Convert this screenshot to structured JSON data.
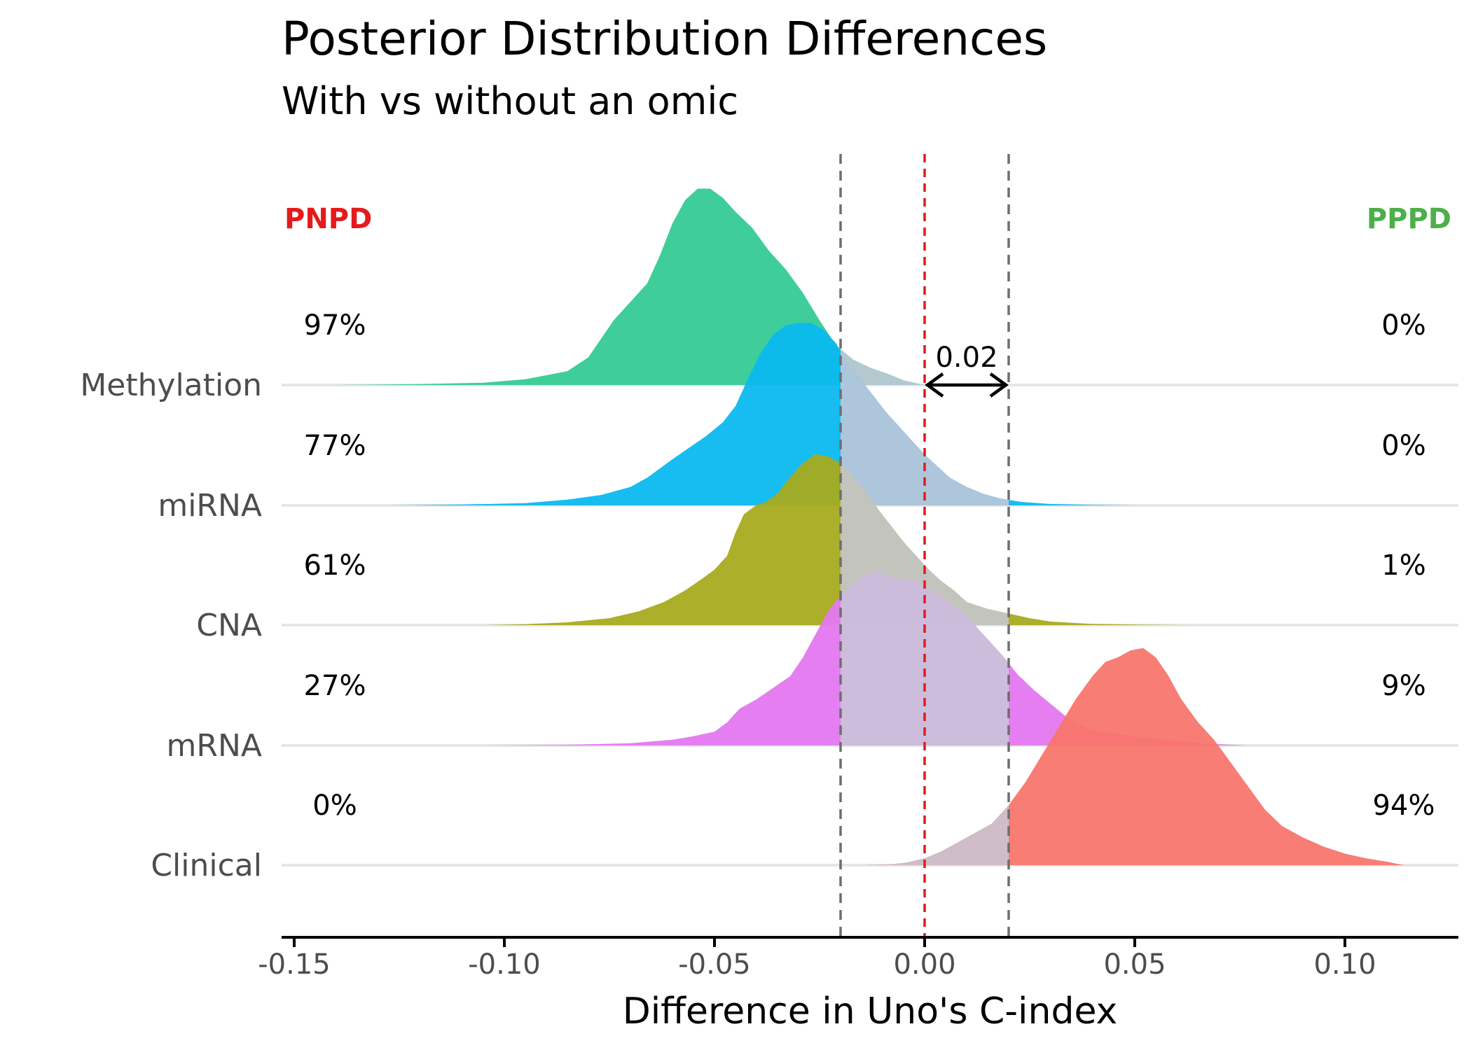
{
  "chart_data": {
    "type": "ridgeline",
    "title": "Posterior Distribution Differences",
    "subtitle": "With vs without an omic",
    "xlabel": "Difference in Uno's C-index",
    "xlim": [
      -0.153,
      0.127
    ],
    "xticks": [
      -0.15,
      -0.1,
      -0.05,
      0.0,
      0.05,
      0.1
    ],
    "xtick_labels": [
      "-0.15",
      "-0.10",
      "-0.05",
      "0.00",
      "0.05",
      "0.10"
    ],
    "rope": [
      -0.02,
      0.02
    ],
    "zero_line": 0.0,
    "threshold_label": "0.02",
    "left_heading": "PNPD",
    "right_heading": "PPPD",
    "left_color": "#e41a1c",
    "right_color": "#4daf4a",
    "rope_color": "#c8c8d8",
    "series": [
      {
        "name": "Methylation",
        "color": "#35cb94",
        "pnpd": "97%",
        "pppd": "0%",
        "density": [
          [
            -0.14,
            0
          ],
          [
            -0.12,
            0.004
          ],
          [
            -0.105,
            0.01
          ],
          [
            -0.095,
            0.025
          ],
          [
            -0.085,
            0.06
          ],
          [
            -0.08,
            0.12
          ],
          [
            -0.077,
            0.2
          ],
          [
            -0.074,
            0.28
          ],
          [
            -0.07,
            0.36
          ],
          [
            -0.066,
            0.44
          ],
          [
            -0.063,
            0.56
          ],
          [
            -0.06,
            0.7
          ],
          [
            -0.057,
            0.8
          ],
          [
            -0.054,
            0.85
          ],
          [
            -0.051,
            0.85
          ],
          [
            -0.048,
            0.81
          ],
          [
            -0.045,
            0.75
          ],
          [
            -0.041,
            0.68
          ],
          [
            -0.037,
            0.58
          ],
          [
            -0.033,
            0.5
          ],
          [
            -0.029,
            0.4
          ],
          [
            -0.025,
            0.28
          ],
          [
            -0.021,
            0.17
          ],
          [
            -0.017,
            0.11
          ],
          [
            -0.013,
            0.075
          ],
          [
            -0.009,
            0.05
          ],
          [
            -0.005,
            0.02
          ],
          [
            -0.002,
            0.008
          ],
          [
            0.0,
            0
          ]
        ]
      },
      {
        "name": "miRNA",
        "color": "#0bb9ef",
        "pnpd": "77%",
        "pppd": "0%",
        "density": [
          [
            -0.127,
            0
          ],
          [
            -0.11,
            0.004
          ],
          [
            -0.095,
            0.01
          ],
          [
            -0.085,
            0.025
          ],
          [
            -0.077,
            0.045
          ],
          [
            -0.07,
            0.08
          ],
          [
            -0.066,
            0.12
          ],
          [
            -0.063,
            0.16
          ],
          [
            -0.06,
            0.2
          ],
          [
            -0.056,
            0.25
          ],
          [
            -0.052,
            0.3
          ],
          [
            -0.048,
            0.36
          ],
          [
            -0.045,
            0.43
          ],
          [
            -0.042,
            0.55
          ],
          [
            -0.039,
            0.66
          ],
          [
            -0.036,
            0.74
          ],
          [
            -0.033,
            0.78
          ],
          [
            -0.03,
            0.79
          ],
          [
            -0.027,
            0.79
          ],
          [
            -0.024,
            0.76
          ],
          [
            -0.021,
            0.7
          ],
          [
            -0.018,
            0.6
          ],
          [
            -0.015,
            0.54
          ],
          [
            -0.012,
            0.47
          ],
          [
            -0.009,
            0.4
          ],
          [
            -0.006,
            0.34
          ],
          [
            -0.003,
            0.28
          ],
          [
            0.0,
            0.22
          ],
          [
            0.003,
            0.17
          ],
          [
            0.006,
            0.12
          ],
          [
            0.01,
            0.08
          ],
          [
            0.014,
            0.05
          ],
          [
            0.018,
            0.03
          ],
          [
            0.023,
            0.015
          ],
          [
            0.03,
            0.006
          ],
          [
            0.04,
            0.002
          ],
          [
            0.05,
            0
          ]
        ]
      },
      {
        "name": "CNA",
        "color": "#a6ab1e",
        "pnpd": "61%",
        "pppd": "1%",
        "density": [
          [
            -0.105,
            0
          ],
          [
            -0.095,
            0.004
          ],
          [
            -0.085,
            0.012
          ],
          [
            -0.075,
            0.03
          ],
          [
            -0.068,
            0.06
          ],
          [
            -0.062,
            0.1
          ],
          [
            -0.057,
            0.15
          ],
          [
            -0.053,
            0.2
          ],
          [
            -0.05,
            0.24
          ],
          [
            -0.047,
            0.3
          ],
          [
            -0.045,
            0.4
          ],
          [
            -0.043,
            0.48
          ],
          [
            -0.04,
            0.52
          ],
          [
            -0.038,
            0.53
          ],
          [
            -0.035,
            0.57
          ],
          [
            -0.032,
            0.64
          ],
          [
            -0.029,
            0.7
          ],
          [
            -0.026,
            0.74
          ],
          [
            -0.023,
            0.73
          ],
          [
            -0.02,
            0.7
          ],
          [
            -0.017,
            0.64
          ],
          [
            -0.014,
            0.58
          ],
          [
            -0.011,
            0.5
          ],
          [
            -0.008,
            0.43
          ],
          [
            -0.005,
            0.36
          ],
          [
            -0.002,
            0.3
          ],
          [
            0.001,
            0.24
          ],
          [
            0.004,
            0.19
          ],
          [
            0.007,
            0.15
          ],
          [
            0.01,
            0.1
          ],
          [
            0.015,
            0.07
          ],
          [
            0.02,
            0.05
          ],
          [
            0.025,
            0.03
          ],
          [
            0.03,
            0.015
          ],
          [
            0.04,
            0.005
          ],
          [
            0.05,
            0.002
          ],
          [
            0.063,
            0
          ]
        ]
      },
      {
        "name": "mRNA",
        "color": "#e478f0",
        "pnpd": "27%",
        "pppd": "9%",
        "density": [
          [
            -0.105,
            0
          ],
          [
            -0.085,
            0.003
          ],
          [
            -0.07,
            0.01
          ],
          [
            -0.06,
            0.025
          ],
          [
            -0.055,
            0.04
          ],
          [
            -0.05,
            0.06
          ],
          [
            -0.047,
            0.1
          ],
          [
            -0.044,
            0.16
          ],
          [
            -0.04,
            0.2
          ],
          [
            -0.036,
            0.25
          ],
          [
            -0.032,
            0.3
          ],
          [
            -0.029,
            0.38
          ],
          [
            -0.026,
            0.48
          ],
          [
            -0.023,
            0.58
          ],
          [
            -0.02,
            0.65
          ],
          [
            -0.017,
            0.7
          ],
          [
            -0.014,
            0.74
          ],
          [
            -0.011,
            0.75
          ],
          [
            -0.008,
            0.73
          ],
          [
            -0.005,
            0.72
          ],
          [
            -0.002,
            0.71
          ],
          [
            0.001,
            0.68
          ],
          [
            0.004,
            0.64
          ],
          [
            0.007,
            0.6
          ],
          [
            0.01,
            0.56
          ],
          [
            0.013,
            0.5
          ],
          [
            0.016,
            0.44
          ],
          [
            0.019,
            0.38
          ],
          [
            0.022,
            0.31
          ],
          [
            0.026,
            0.24
          ],
          [
            0.03,
            0.18
          ],
          [
            0.034,
            0.12
          ],
          [
            0.038,
            0.08
          ],
          [
            0.042,
            0.06
          ],
          [
            0.046,
            0.05
          ],
          [
            0.05,
            0.04
          ],
          [
            0.055,
            0.03
          ],
          [
            0.06,
            0.02
          ],
          [
            0.066,
            0.01
          ],
          [
            0.072,
            0.004
          ],
          [
            0.077,
            0
          ]
        ]
      },
      {
        "name": "Clinical",
        "color": "#f8766d",
        "pnpd": "0%",
        "pppd": "94%",
        "density": [
          [
            -0.014,
            0
          ],
          [
            -0.008,
            0.004
          ],
          [
            -0.004,
            0.012
          ],
          [
            0.0,
            0.03
          ],
          [
            0.004,
            0.06
          ],
          [
            0.008,
            0.1
          ],
          [
            0.012,
            0.14
          ],
          [
            0.016,
            0.18
          ],
          [
            0.02,
            0.26
          ],
          [
            0.024,
            0.36
          ],
          [
            0.028,
            0.48
          ],
          [
            0.032,
            0.6
          ],
          [
            0.036,
            0.72
          ],
          [
            0.04,
            0.82
          ],
          [
            0.043,
            0.88
          ],
          [
            0.046,
            0.9
          ],
          [
            0.049,
            0.93
          ],
          [
            0.052,
            0.94
          ],
          [
            0.055,
            0.9
          ],
          [
            0.058,
            0.82
          ],
          [
            0.061,
            0.72
          ],
          [
            0.065,
            0.62
          ],
          [
            0.069,
            0.54
          ],
          [
            0.073,
            0.44
          ],
          [
            0.077,
            0.34
          ],
          [
            0.081,
            0.24
          ],
          [
            0.085,
            0.17
          ],
          [
            0.09,
            0.12
          ],
          [
            0.095,
            0.08
          ],
          [
            0.1,
            0.05
          ],
          [
            0.105,
            0.03
          ],
          [
            0.11,
            0.015
          ],
          [
            0.114,
            0
          ]
        ]
      }
    ]
  }
}
